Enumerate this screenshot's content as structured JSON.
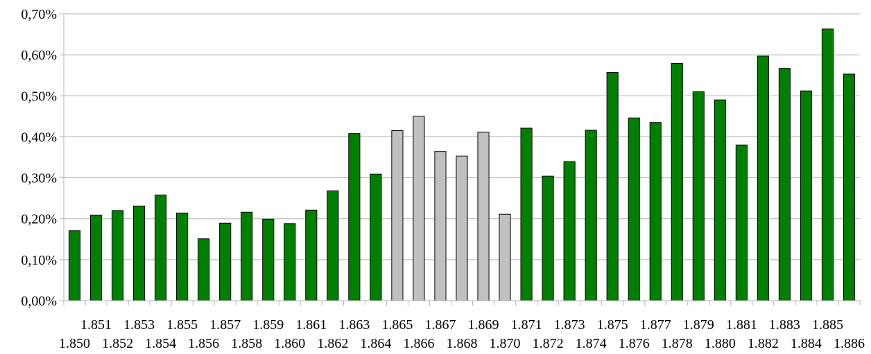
{
  "chart_data": {
    "type": "bar",
    "title": "",
    "xlabel": "",
    "ylabel": "",
    "ylim": [
      0,
      0.7
    ],
    "y_ticks": [
      "0,00%",
      "0,10%",
      "0,20%",
      "0,30%",
      "0,40%",
      "0,50%",
      "0,60%",
      "0,70%"
    ],
    "grid": true,
    "legend": "none",
    "colors": {
      "default": "#008000",
      "highlight": "#c0c0c0"
    },
    "categories": [
      "1.850",
      "1.851",
      "1.852",
      "1.853",
      "1.854",
      "1.855",
      "1.856",
      "1.857",
      "1.858",
      "1.859",
      "1.860",
      "1.861",
      "1.862",
      "1.863",
      "1.864",
      "1.865",
      "1.866",
      "1.867",
      "1.868",
      "1.869",
      "1.870",
      "1.871",
      "1.872",
      "1.873",
      "1.874",
      "1.875",
      "1.876",
      "1.877",
      "1.878",
      "1.879",
      "1.880",
      "1.881",
      "1.882",
      "1.883",
      "1.884",
      "1.885",
      "1.886"
    ],
    "values": [
      0.171,
      0.209,
      0.22,
      0.231,
      0.258,
      0.214,
      0.151,
      0.189,
      0.216,
      0.199,
      0.188,
      0.221,
      0.268,
      0.408,
      0.309,
      0.415,
      0.45,
      0.364,
      0.353,
      0.411,
      0.211,
      0.421,
      0.304,
      0.339,
      0.416,
      0.557,
      0.446,
      0.435,
      0.579,
      0.51,
      0.49,
      0.38,
      0.597,
      0.567,
      0.512,
      0.663,
      0.553
    ],
    "highlighted_categories": [
      "1.865",
      "1.866",
      "1.867",
      "1.868",
      "1.869",
      "1.870"
    ]
  }
}
